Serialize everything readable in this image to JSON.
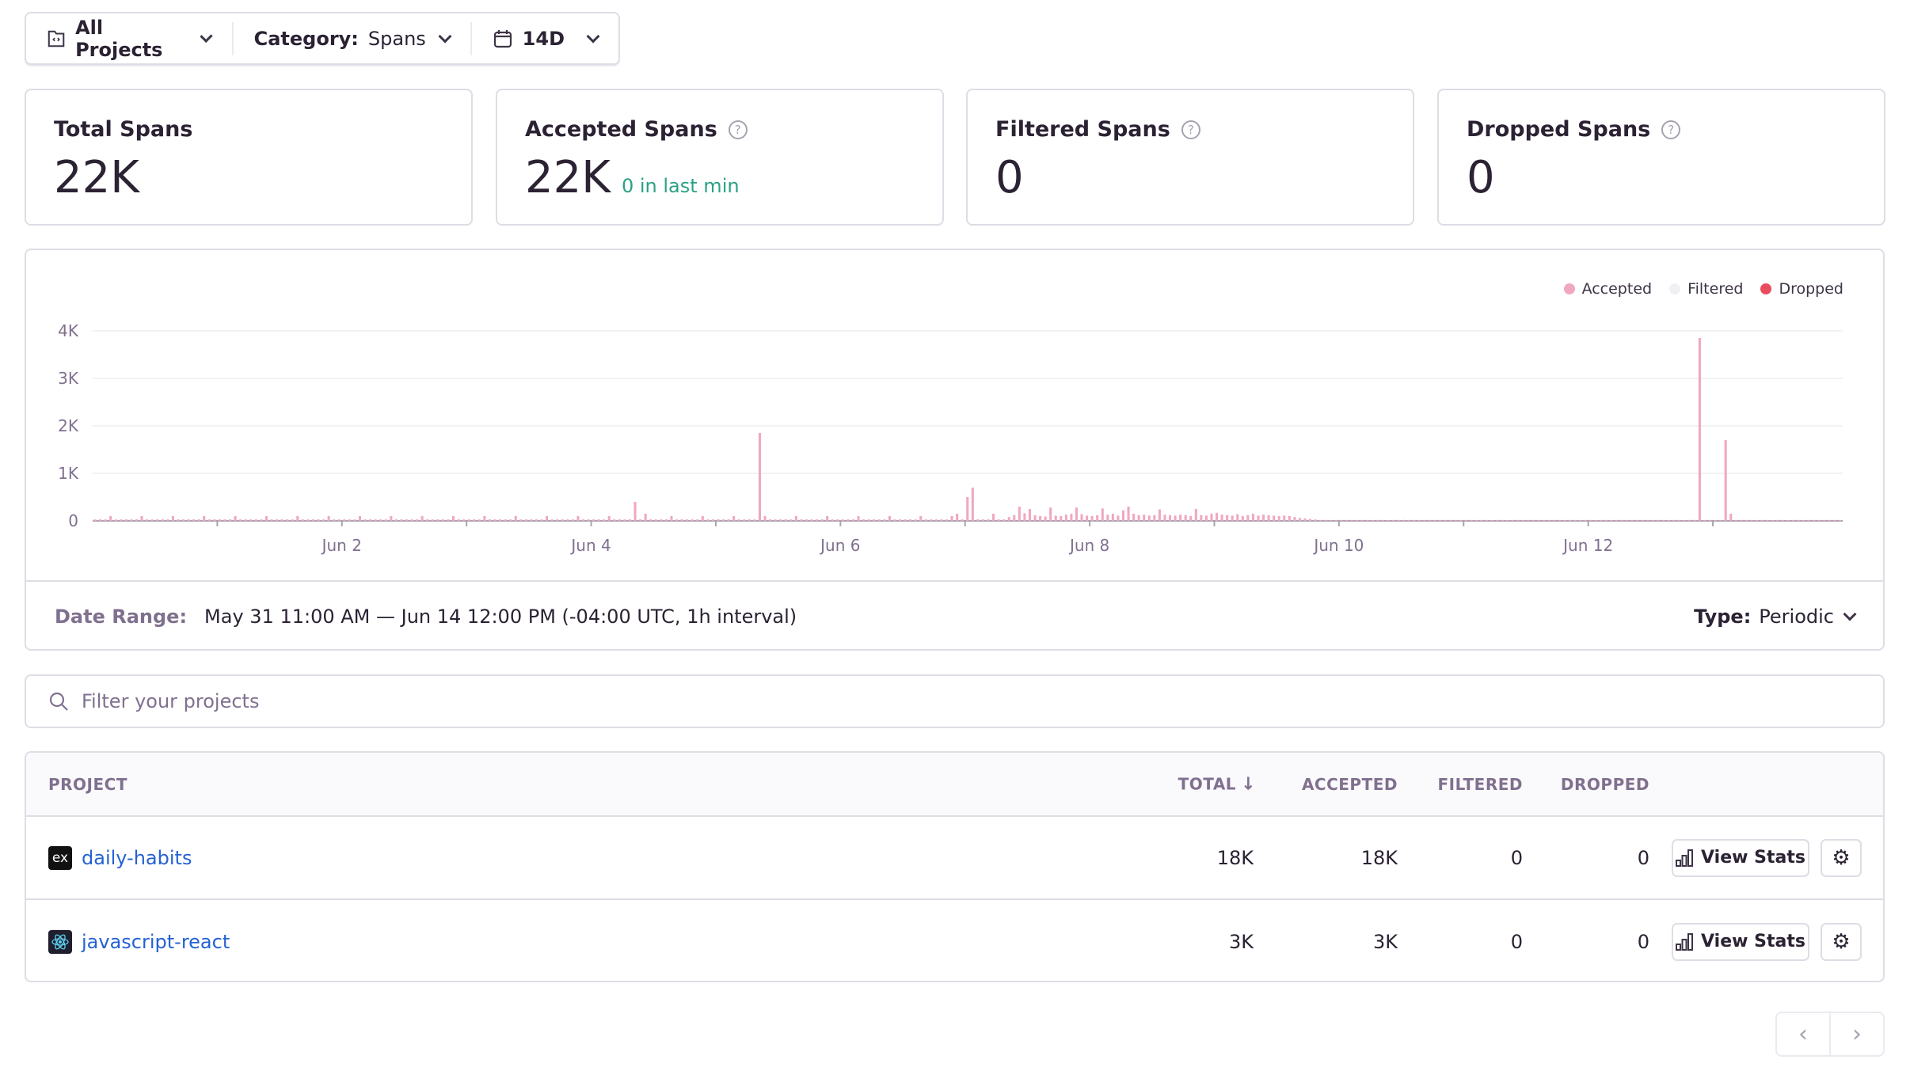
{
  "filters": {
    "projects": {
      "label": "All Projects",
      "icon": "project-folder-icon"
    },
    "category": {
      "label": "Category:",
      "value": "Spans"
    },
    "period": {
      "label": "14D",
      "icon": "calendar-icon"
    }
  },
  "cards": [
    {
      "title": "Total Spans",
      "value": "22K",
      "help": false
    },
    {
      "title": "Accepted Spans",
      "value": "22K",
      "sub": "0 in last min",
      "help": true
    },
    {
      "title": "Filtered Spans",
      "value": "0",
      "help": true
    },
    {
      "title": "Dropped Spans",
      "value": "0",
      "help": true
    }
  ],
  "colors": {
    "accepted": "#f0a8c0",
    "filtered": "#f2eff4",
    "dropped": "#e94c5c",
    "link": "#2562d4",
    "positive": "#2ba185"
  },
  "chart_data": {
    "type": "bar",
    "stacked": true,
    "interval": "1h",
    "ylim": [
      0,
      4000
    ],
    "y_ticks": [
      "0",
      "1K",
      "2K",
      "3K",
      "4K"
    ],
    "x_ticks": [
      "Jun 2",
      "Jun 4",
      "Jun 6",
      "Jun 8",
      "Jun 10",
      "Jun 12"
    ],
    "grid": true,
    "legend_position": "top-right",
    "series": [
      {
        "name": "Accepted",
        "color": "#f0a8c0",
        "values": [
          30,
          30,
          30,
          100,
          30,
          30,
          30,
          30,
          30,
          100,
          30,
          30,
          30,
          30,
          30,
          100,
          30,
          30,
          30,
          30,
          30,
          100,
          30,
          30,
          30,
          30,
          30,
          100,
          30,
          30,
          30,
          30,
          30,
          100,
          30,
          30,
          30,
          30,
          30,
          100,
          30,
          30,
          30,
          30,
          30,
          100,
          30,
          30,
          30,
          30,
          30,
          100,
          30,
          30,
          30,
          30,
          30,
          100,
          30,
          30,
          30,
          30,
          30,
          100,
          30,
          30,
          30,
          30,
          30,
          100,
          30,
          30,
          30,
          30,
          30,
          100,
          30,
          30,
          30,
          30,
          30,
          100,
          30,
          30,
          30,
          30,
          30,
          100,
          30,
          30,
          30,
          30,
          30,
          100,
          30,
          30,
          30,
          30,
          30,
          100,
          30,
          30,
          30,
          30,
          400,
          30,
          150,
          30,
          30,
          30,
          30,
          100,
          30,
          30,
          30,
          30,
          30,
          100,
          30,
          30,
          30,
          30,
          30,
          100,
          30,
          30,
          30,
          30,
          1850,
          100,
          30,
          30,
          30,
          30,
          30,
          100,
          30,
          30,
          30,
          30,
          30,
          100,
          30,
          30,
          30,
          30,
          30,
          100,
          30,
          30,
          30,
          30,
          30,
          100,
          30,
          30,
          30,
          30,
          30,
          100,
          30,
          30,
          30,
          30,
          30,
          100,
          150,
          30,
          500,
          700,
          30,
          30,
          30,
          150,
          30,
          30,
          80,
          120,
          300,
          160,
          250,
          120,
          100,
          90,
          280,
          110,
          100,
          130,
          150,
          280,
          140,
          110,
          100,
          120,
          260,
          130,
          150,
          110,
          220,
          300,
          150,
          120,
          130,
          110,
          120,
          240,
          130,
          120,
          110,
          130,
          120,
          100,
          250,
          120,
          110,
          150,
          170,
          130,
          120,
          110,
          140,
          100,
          120,
          150,
          110,
          130,
          120,
          110,
          100,
          110,
          100,
          80,
          60,
          50,
          40,
          30,
          20,
          20,
          20,
          20,
          20,
          20,
          20,
          20,
          20,
          20,
          20,
          20,
          20,
          20,
          20,
          20,
          20,
          20,
          20,
          20,
          20,
          20,
          20,
          20,
          20,
          20,
          20,
          20,
          20,
          20,
          20,
          20,
          20,
          20,
          20,
          20,
          20,
          20,
          20,
          20,
          20,
          20,
          20,
          20,
          20,
          20,
          20,
          20,
          20,
          20,
          20,
          20,
          20,
          20,
          20,
          20,
          20,
          20,
          20,
          20,
          20,
          20,
          20,
          20,
          20,
          20,
          20,
          20,
          20,
          20,
          20,
          20,
          20,
          3850,
          20,
          20,
          20,
          20,
          1700,
          150,
          20,
          20,
          20,
          20,
          20,
          20,
          20,
          20,
          20,
          20,
          20,
          20,
          20,
          20,
          20,
          20,
          20,
          20,
          20,
          20,
          20
        ]
      },
      {
        "name": "Filtered",
        "color": "#f2eff4",
        "values": []
      },
      {
        "name": "Dropped",
        "color": "#e94c5c",
        "values": []
      }
    ]
  },
  "chart_footer": {
    "date_range_label": "Date Range:",
    "date_range_value": "May 31 11:00 AM — Jun 14 12:00 PM (-04:00 UTC, 1h interval)",
    "type_label": "Type:",
    "type_value": "Periodic"
  },
  "search": {
    "placeholder": "Filter your projects",
    "value": ""
  },
  "table": {
    "columns": [
      "PROJECT",
      "TOTAL",
      "ACCEPTED",
      "FILTERED",
      "DROPPED"
    ],
    "sort": {
      "column": "TOTAL",
      "direction": "desc"
    },
    "rows": [
      {
        "project": "daily-habits",
        "icon": "express-icon",
        "icon_text": "ex",
        "total": "18K",
        "accepted": "18K",
        "filtered": "0",
        "dropped": "0"
      },
      {
        "project": "javascript-react",
        "icon": "react-icon",
        "total": "3K",
        "accepted": "3K",
        "filtered": "0",
        "dropped": "0"
      }
    ],
    "view_stats_label": "View Stats"
  }
}
